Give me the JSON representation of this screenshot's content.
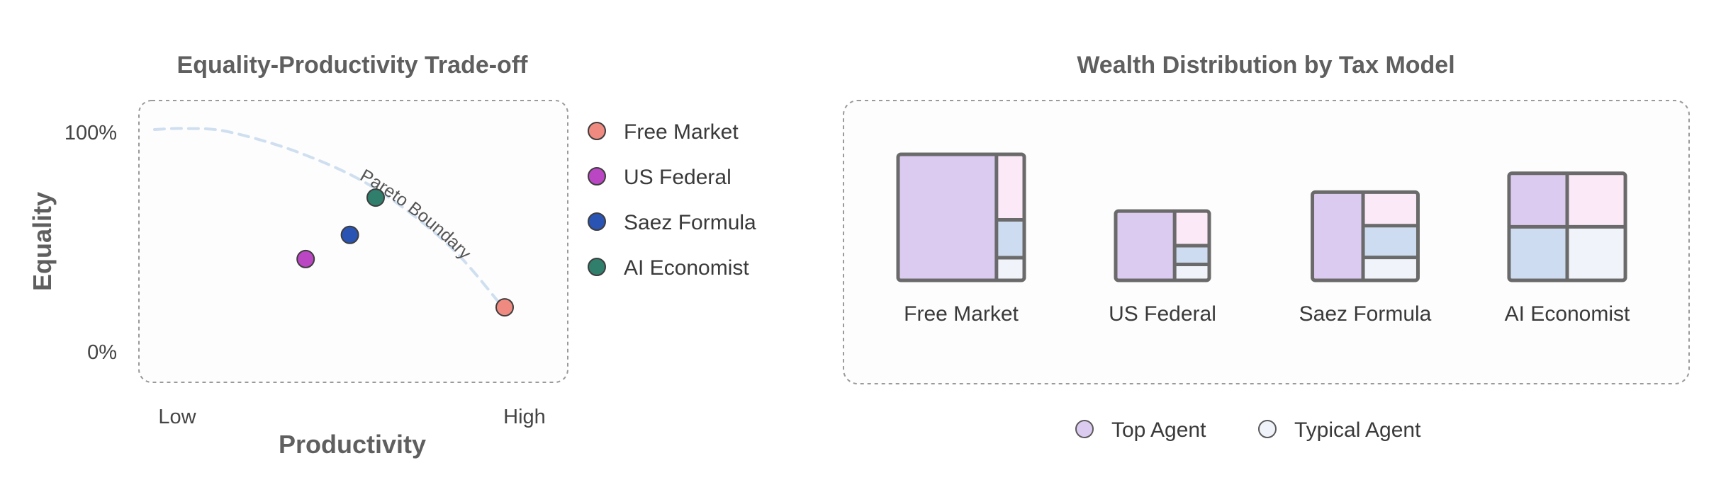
{
  "chart_data": [
    {
      "type": "scatter",
      "title": "Equality-Productivity Trade-off",
      "xlabel": "Productivity",
      "ylabel": "Equality",
      "x_ticks": [
        "Low",
        "High"
      ],
      "y_ticks": [
        "0%",
        "100%"
      ],
      "xlim": [
        0,
        1
      ],
      "ylim": [
        0,
        100
      ],
      "grid": false,
      "legend_position": "right",
      "annotation": "Pareto Boundary",
      "frontier": {
        "x": [
          0.0,
          0.08,
          0.2,
          0.4,
          0.6,
          0.8,
          0.95
        ],
        "y": [
          100,
          100.5,
          99,
          89,
          73,
          47,
          18
        ]
      },
      "series": [
        {
          "name": "Free Market",
          "color": "#ef8a80",
          "x": [
            0.95
          ],
          "y": [
            19
          ]
        },
        {
          "name": "US Federal",
          "color": "#bb46c3",
          "x": [
            0.41
          ],
          "y": [
            41
          ]
        },
        {
          "name": "Saez Formula",
          "color": "#2a54b4",
          "x": [
            0.53
          ],
          "y": [
            52
          ]
        },
        {
          "name": "AI Economist",
          "color": "#2f7f6c",
          "x": [
            0.6
          ],
          "y": [
            69
          ]
        }
      ]
    },
    {
      "type": "treemap",
      "title": "Wealth Distribution by Tax Model",
      "legend_position": "bottom",
      "legend": [
        {
          "label": "Top Agent",
          "color": "#dccbf0"
        },
        {
          "label": "Typical Agent",
          "color": "#f0f3f9"
        }
      ],
      "models": [
        {
          "name": "Free Market",
          "size": 1.0,
          "top_share": 0.78,
          "cells": [
            {
              "share": 0.52,
              "color": "#fbe9f7"
            },
            {
              "share": 0.3,
              "color": "#cddcf0"
            },
            {
              "share": 0.18,
              "color": "#f0f3f9"
            }
          ]
        },
        {
          "name": "US Federal",
          "size": 0.55,
          "top_share": 0.63,
          "cells": [
            {
              "share": 0.5,
              "color": "#fbe9f7"
            },
            {
              "share": 0.27,
              "color": "#cddcf0"
            },
            {
              "share": 0.23,
              "color": "#f0f3f9"
            }
          ]
        },
        {
          "name": "Saez Formula",
          "size": 0.7,
          "top_share": 0.48,
          "cells": [
            {
              "share": 0.38,
              "color": "#fbe9f7"
            },
            {
              "share": 0.36,
              "color": "#cddcf0"
            },
            {
              "share": 0.26,
              "color": "#f0f3f9"
            }
          ]
        },
        {
          "name": "AI Economist",
          "size": 0.85,
          "top_share": 0.5,
          "grid": [
            [
              "#dccbf0",
              "#fbe9f7"
            ],
            [
              "#cddcf0",
              "#f0f3f9"
            ]
          ]
        }
      ]
    }
  ]
}
